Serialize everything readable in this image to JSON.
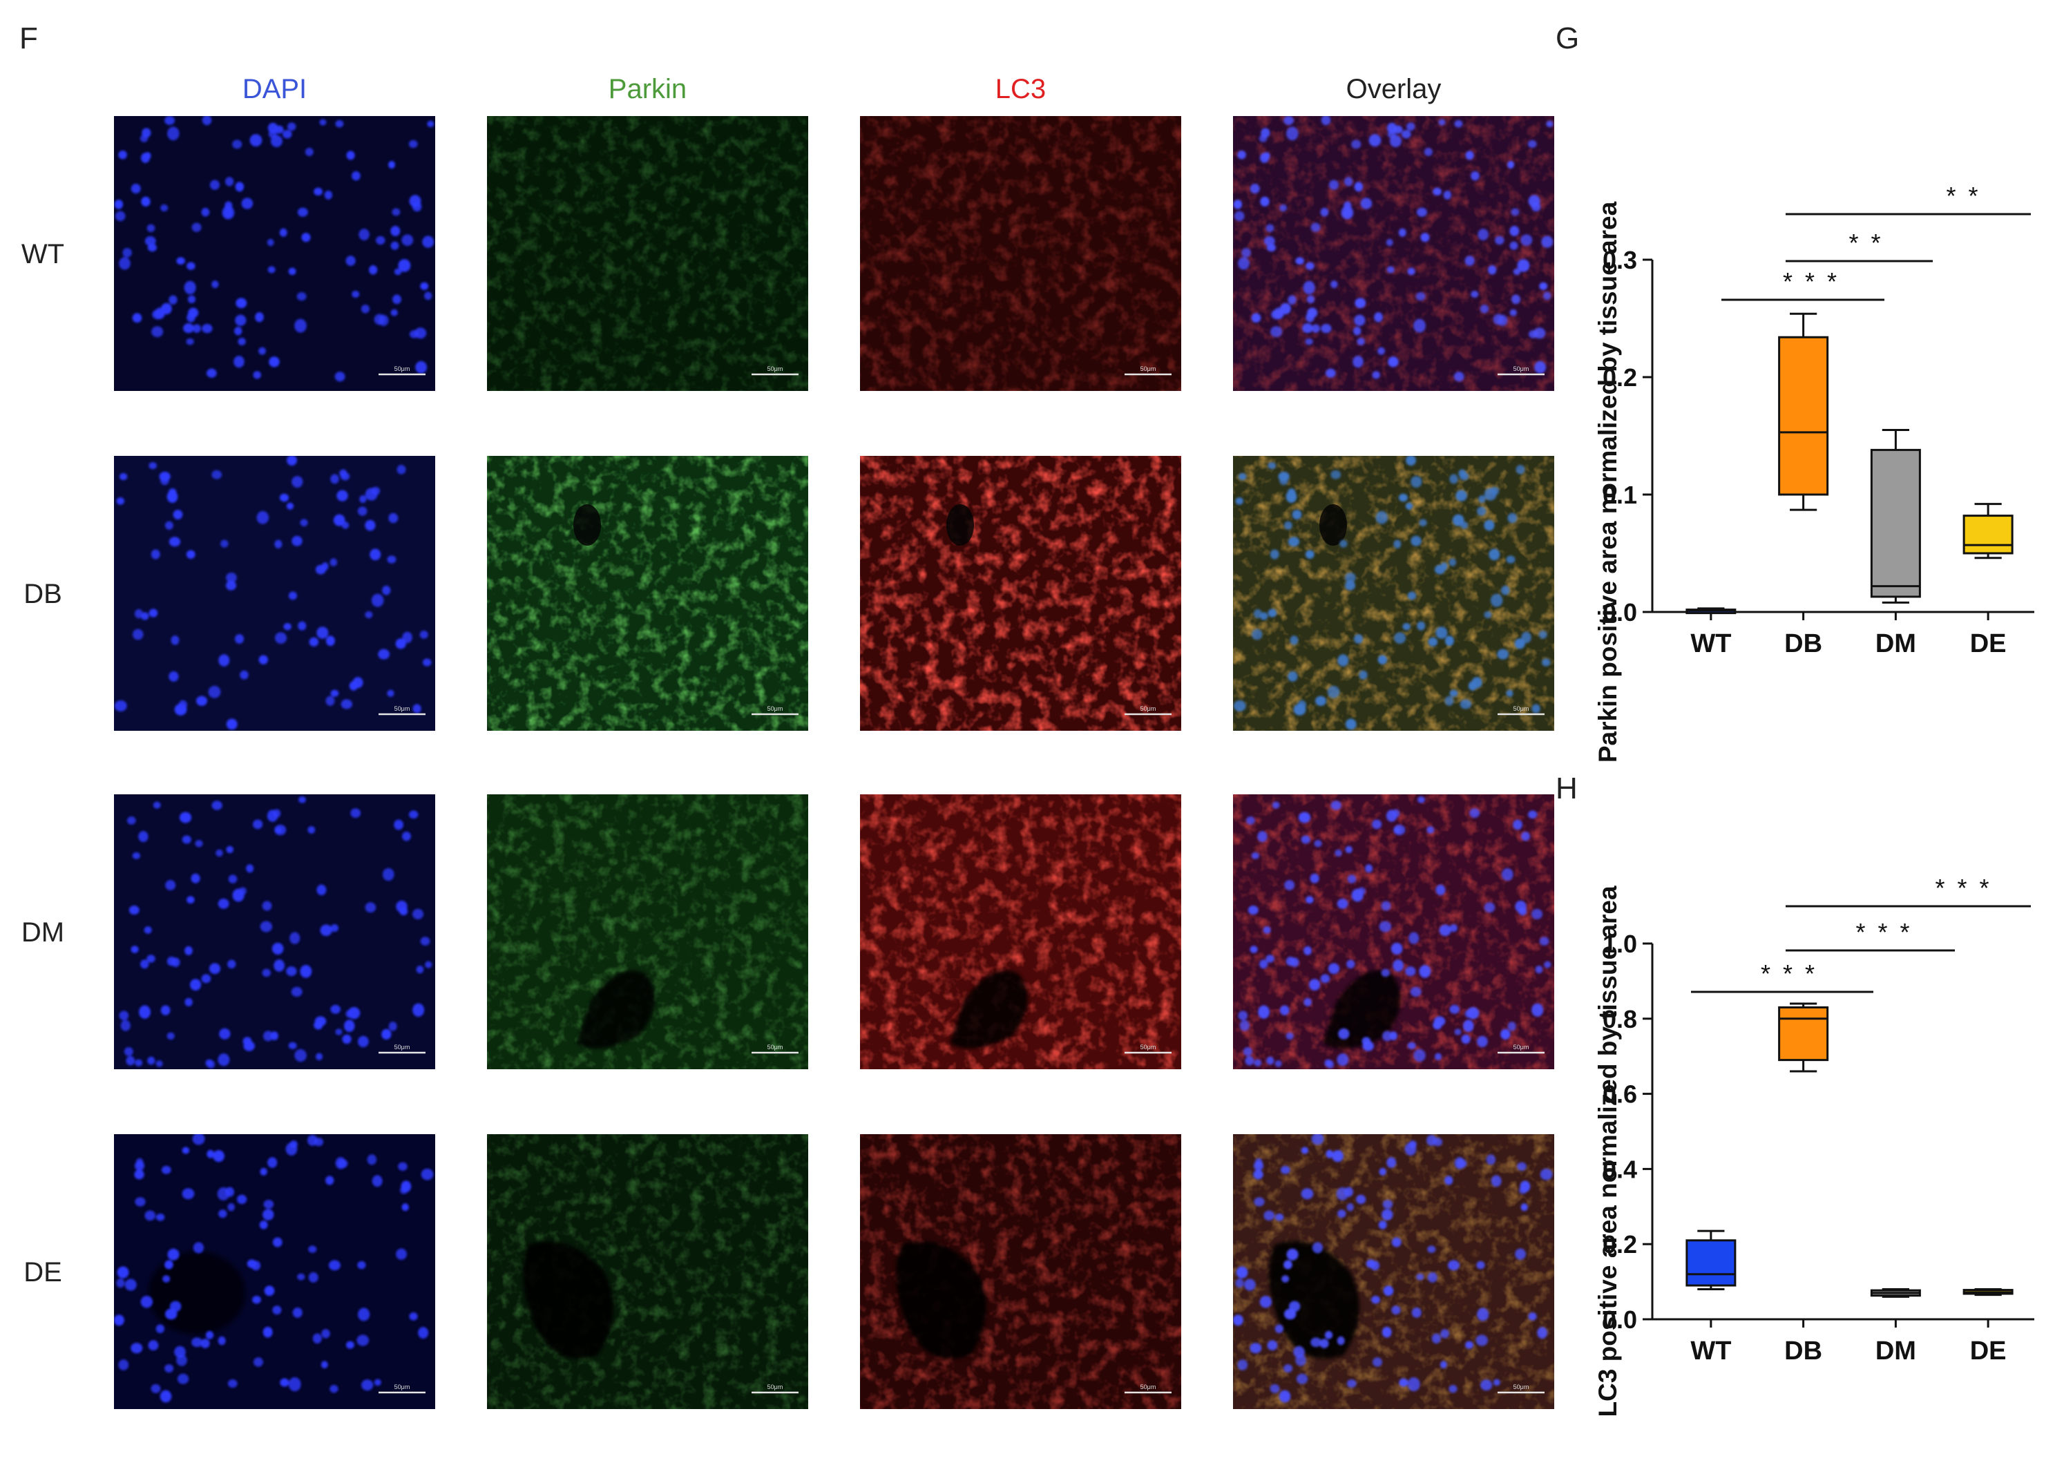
{
  "panel_letters": {
    "f": "F",
    "g": "G",
    "h": "H"
  },
  "micrograph_grid": {
    "columns": [
      {
        "label": "DAPI",
        "color": "#3a55d8"
      },
      {
        "label": "Parkin",
        "color": "#4c9a3a"
      },
      {
        "label": "LC3",
        "color": "#e02020"
      },
      {
        "label": "Overlay",
        "color": "#222222"
      }
    ],
    "rows": [
      "WT",
      "DB",
      "DM",
      "DE"
    ],
    "scale_bar_label": "50μm"
  },
  "colors": {
    "WT": "#1a46f0",
    "DB": "#ff8c0a",
    "DM": "#9a9a9a",
    "DE": "#f7cb10"
  },
  "chart_data": [
    {
      "type": "box",
      "panel": "G",
      "ylabel": "Parkin positive area normalized by tissue area",
      "xlabel": "",
      "categories": [
        "WT",
        "DB",
        "DM",
        "DE"
      ],
      "ylim": [
        0,
        0.3
      ],
      "yticks": [
        0.0,
        0.1,
        0.2,
        0.3
      ],
      "ytick_labels": [
        "0.0",
        "0.1",
        "0.2",
        "0.3"
      ],
      "boxes": [
        {
          "min": 0.0,
          "q1": 0.0,
          "median": 0.001,
          "q3": 0.002,
          "max": 0.003
        },
        {
          "min": 0.087,
          "q1": 0.1,
          "median": 0.153,
          "q3": 0.234,
          "max": 0.254
        },
        {
          "min": 0.008,
          "q1": 0.013,
          "median": 0.022,
          "q3": 0.138,
          "max": 0.155
        },
        {
          "min": 0.046,
          "q1": 0.05,
          "median": 0.057,
          "q3": 0.082,
          "max": 0.092
        }
      ],
      "significance": [
        {
          "from": "WT",
          "to": "DB",
          "label": "* * *"
        },
        {
          "from": "DB",
          "to": "DM",
          "label": "* *"
        },
        {
          "from": "DB",
          "to": "DE",
          "label": "* *"
        }
      ],
      "grid": false
    },
    {
      "type": "box",
      "panel": "H",
      "ylabel": "LC3 positive area normalized by tissue area",
      "xlabel": "",
      "categories": [
        "WT",
        "DB",
        "DM",
        "DE"
      ],
      "ylim": [
        0,
        1.0
      ],
      "yticks": [
        0.0,
        0.2,
        0.4,
        0.6,
        0.8,
        1.0
      ],
      "ytick_labels": [
        "0.0",
        "0.2",
        "0.4",
        "0.6",
        "0.8",
        "1.0"
      ],
      "boxes": [
        {
          "min": 0.08,
          "q1": 0.09,
          "median": 0.12,
          "q3": 0.21,
          "max": 0.235
        },
        {
          "min": 0.66,
          "q1": 0.69,
          "median": 0.8,
          "q3": 0.83,
          "max": 0.84
        },
        {
          "min": 0.06,
          "q1": 0.063,
          "median": 0.07,
          "q3": 0.077,
          "max": 0.08
        },
        {
          "min": 0.065,
          "q1": 0.068,
          "median": 0.072,
          "q3": 0.078,
          "max": 0.08
        }
      ],
      "significance": [
        {
          "from": "WT",
          "to": "DB",
          "label": "* * *"
        },
        {
          "from": "DB",
          "to": "DM",
          "label": "* * *"
        },
        {
          "from": "DB",
          "to": "DE",
          "label": "* * *"
        }
      ],
      "grid": false
    }
  ]
}
